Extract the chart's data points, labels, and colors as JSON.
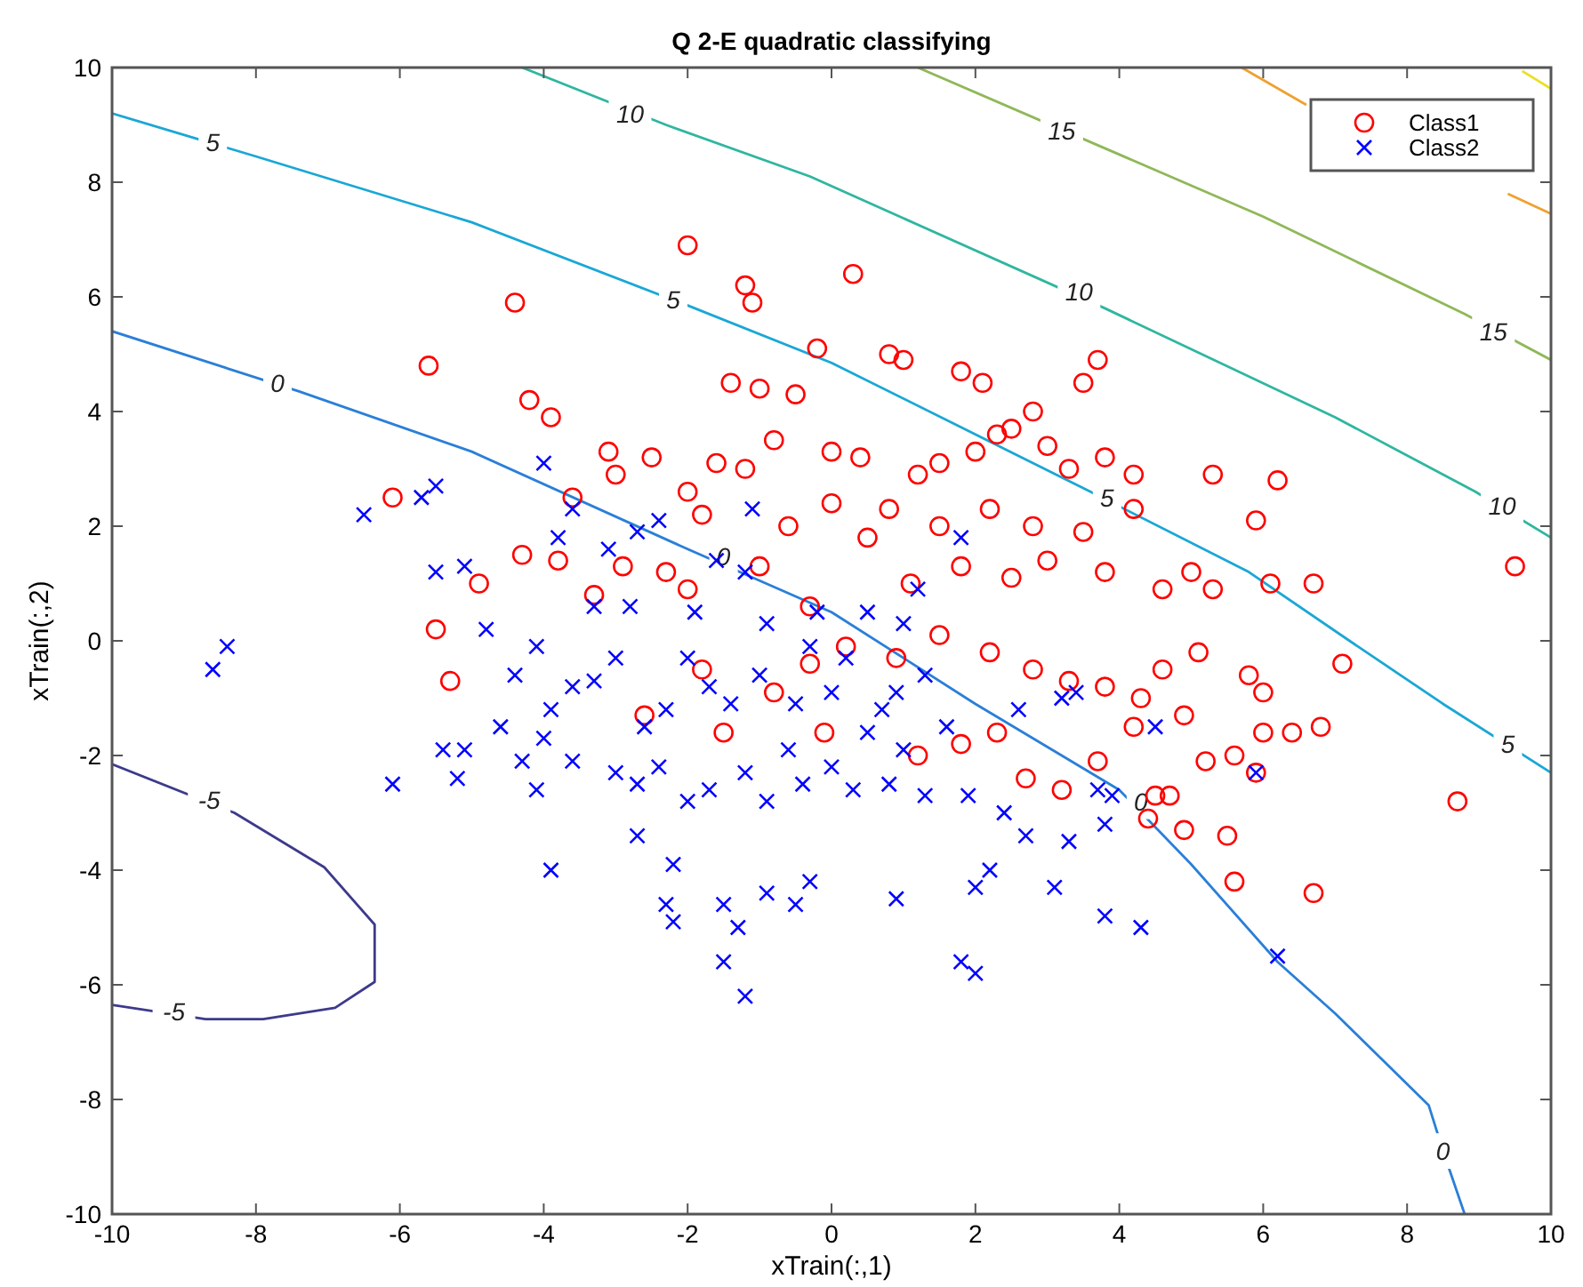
{
  "chart_data": {
    "type": "scatter",
    "title": "Q 2-E quadratic classifying",
    "xlabel": "xTrain(:,1)",
    "ylabel": "xTrain(:,2)",
    "xlim": [
      -10,
      10
    ],
    "ylim": [
      -10,
      10
    ],
    "xticks": [
      -10,
      -8,
      -6,
      -4,
      -2,
      0,
      2,
      4,
      6,
      8,
      10
    ],
    "yticks": [
      -10,
      -8,
      -6,
      -4,
      -2,
      0,
      2,
      4,
      6,
      8,
      10
    ],
    "grid": false,
    "legend": "top right",
    "series": [
      {
        "type": "line",
        "color": "#3d3a8c",
        "marker": "none",
        "x": [
          -10,
          -8.3,
          -7.05,
          -6.35,
          -6.35,
          -6.9,
          -7.9,
          -8.7,
          -10
        ],
        "values": [
          -2.15,
          -3.0,
          -3.95,
          -4.95,
          -5.95,
          -6.4,
          -6.6,
          -6.6,
          -6.35
        ]
      },
      {
        "type": "line",
        "color": "#2a7fd8",
        "marker": "none",
        "x": [
          -10,
          -7.4,
          -5,
          -2,
          0,
          2,
          4,
          5,
          6.2,
          7,
          8.3,
          8.5,
          8.8
        ],
        "values": [
          5.4,
          4.35,
          3.3,
          1.6,
          0.5,
          -1.1,
          -2.6,
          -3.9,
          -5.6,
          -6.5,
          -8.1,
          -8.9,
          -10
        ]
      },
      {
        "type": "line",
        "color": "#1aa7d6",
        "marker": "none",
        "x": [
          -10,
          -8,
          -5,
          -2,
          0,
          2,
          3.6,
          5.8,
          7.2,
          8.5,
          10
        ],
        "values": [
          9.2,
          8.45,
          7.3,
          5.85,
          4.85,
          3.6,
          2.6,
          1.2,
          0,
          -1.1,
          -2.3
        ]
      },
      {
        "type": "line",
        "color": "#2fb6a0",
        "marker": "none",
        "x": [
          -4.3,
          -2.3,
          -0.3,
          3.8,
          7,
          8.95,
          10
        ],
        "values": [
          10,
          9.0,
          8.1,
          5.8,
          3.9,
          2.6,
          1.8
        ]
      },
      {
        "type": "line",
        "color": "#8fb858",
        "marker": "none",
        "x": [
          1.2,
          3.6,
          6,
          8.8,
          10
        ],
        "values": [
          10,
          8.7,
          7.4,
          5.7,
          4.9
        ]
      },
      {
        "type": "line",
        "color": "#f0a030",
        "marker": "none",
        "x": [
          5.7,
          6.6,
          8,
          9.4,
          10
        ],
        "values": [
          10,
          9.35,
          null,
          7.8,
          7.45
        ]
      },
      {
        "type": "line",
        "color": "#e8e020",
        "marker": "none",
        "x": [
          9.6,
          10
        ],
        "values": [
          9.94,
          9.63
        ]
      },
      {
        "name": "Class1",
        "color": "#ff0000",
        "marker": "circle",
        "x": [
          -6.1,
          -5.5,
          -5.6,
          -4.4,
          -4.2,
          -3.9,
          -3.1,
          -3,
          -2.5,
          -2,
          -1.2,
          -1.1,
          -0.2,
          0.3,
          0.8,
          1.0,
          1.8,
          2.1,
          3.7,
          3.5,
          2.8,
          2.5,
          -1.4,
          -1,
          -0.5,
          -4.3,
          -4.9,
          -5.3,
          -2.3,
          -2.9,
          -2,
          -1.8,
          -2,
          -3.6,
          -3.8,
          -3.3,
          -1.6,
          -1.2,
          -0.8,
          0,
          0.4,
          1.2,
          1.5,
          2,
          2.3,
          3,
          3.3,
          3.8,
          4.2,
          5.3,
          6.2,
          5.9,
          4.2,
          3.5,
          2.8,
          2.2,
          1.5,
          0.8,
          0.5,
          0,
          -0.6,
          -1,
          -0.3,
          0.2,
          1.1,
          1.8,
          2.5,
          3,
          3.8,
          4.6,
          5.0,
          5.3,
          6.1,
          6.7,
          7.1,
          9.5,
          4.6,
          5.1,
          5.8,
          6.0,
          4.9,
          4.3,
          3.8,
          3.3,
          2.8,
          2.2,
          1.5,
          0.9,
          -0.3,
          -0.8,
          -1.5,
          -1.8,
          -2.6,
          -0.1,
          1.2,
          1.8,
          2.3,
          2.7,
          3.2,
          3.7,
          4.2,
          5.2,
          5.6,
          6.0,
          6.4,
          6.8,
          5.9,
          4.7,
          4.9,
          5.5,
          4.4,
          5.6,
          6.7,
          8.7,
          4.5
        ],
        "values": [
          2.5,
          0.2,
          4.8,
          5.9,
          4.2,
          3.9,
          3.3,
          2.9,
          3.2,
          6.9,
          6.2,
          5.9,
          5.1,
          6.4,
          5.0,
          4.9,
          4.7,
          4.5,
          4.9,
          4.5,
          4.0,
          3.7,
          4.5,
          4.4,
          4.3,
          1.5,
          1.0,
          -0.7,
          1.2,
          1.3,
          2.6,
          2.2,
          0.9,
          2.5,
          1.4,
          0.8,
          3.1,
          3.0,
          3.5,
          3.3,
          3.2,
          2.9,
          3.1,
          3.3,
          3.6,
          3.4,
          3.0,
          3.2,
          2.9,
          2.9,
          2.8,
          2.1,
          2.3,
          1.9,
          2.0,
          2.3,
          2.0,
          2.3,
          1.8,
          2.4,
          2.0,
          1.3,
          0.6,
          -0.1,
          1.0,
          1.3,
          1.1,
          1.4,
          1.2,
          0.9,
          1.2,
          0.9,
          1.0,
          1.0,
          -0.4,
          1.3,
          -0.5,
          -0.2,
          -0.6,
          -0.9,
          -1.3,
          -1.0,
          -0.8,
          -0.7,
          -0.5,
          -0.2,
          0.1,
          -0.3,
          -0.4,
          -0.9,
          -1.6,
          -0.5,
          -1.3,
          -1.6,
          -2,
          -1.8,
          -1.6,
          -2.4,
          -2.6,
          -2.1,
          -1.5,
          -2.1,
          -2.0,
          -1.6,
          -1.6,
          -1.5,
          -2.3,
          -2.7,
          -3.3,
          -3.4,
          -3.1,
          -4.2,
          -4.4,
          -2.8,
          -2.7
        ]
      },
      {
        "name": "Class2",
        "color": "#0000ff",
        "marker": "cross",
        "x": [
          -8.6,
          -8.4,
          -6.1,
          -6.5,
          -5.7,
          -5.5,
          -5.1,
          -5.5,
          -4.8,
          -4.4,
          -4.1,
          -3.8,
          -3.6,
          -4.0,
          -3.3,
          -5.4,
          -5.1,
          -5.2,
          -4.6,
          -4.3,
          -4.0,
          -3.9,
          -3.6,
          -3.3,
          -3.0,
          -2.8,
          -2.6,
          -2.3,
          -2.0,
          -1.7,
          -1.4,
          -1,
          -0.5,
          0,
          0.2,
          0.5,
          0.9,
          1.3,
          -3.0,
          -2.7,
          -2.4,
          -2.0,
          -1.7,
          -1.2,
          -0.9,
          -0.4,
          0,
          0.3,
          0.8,
          1.3,
          1.9,
          2.4,
          2.7,
          3.3,
          3.8,
          3.9,
          2.2,
          2.0,
          3.1,
          3.8,
          4.3,
          1.8,
          2.0,
          0.9,
          -0.9,
          -0.5,
          -1.5,
          -1.3,
          -1.5,
          -1.2,
          -2.7,
          -3.9,
          -2.3,
          -2.2,
          -0.3,
          6.2,
          5.9,
          3.2,
          1.2,
          1.8,
          -2.4,
          -1.1,
          -1.6,
          -1.2,
          -0.2,
          -0.9,
          0.5,
          1.0,
          2.6,
          3.4,
          4.5,
          3.7,
          1.6,
          1.0,
          -0.6,
          -2.2,
          -3.6,
          -4.1,
          -1.9,
          -2.7,
          -3.1,
          -0.3,
          0.7
        ],
        "values": [
          -0.5,
          -0.1,
          -2.5,
          2.2,
          2.5,
          2.7,
          1.3,
          1.2,
          0.2,
          -0.6,
          -0.1,
          1.8,
          2.3,
          3.1,
          0.6,
          -1.9,
          -1.9,
          -2.4,
          -1.5,
          -2.1,
          -1.7,
          -1.2,
          -0.8,
          -0.7,
          -0.3,
          0.6,
          -1.5,
          -1.2,
          -0.3,
          -0.8,
          -1.1,
          -0.6,
          -1.1,
          -0.9,
          -0.3,
          -1.6,
          -0.9,
          -0.6,
          -2.3,
          -2.5,
          -2.2,
          -2.8,
          -2.6,
          -2.3,
          -2.8,
          -2.5,
          -2.2,
          -2.6,
          -2.5,
          -2.7,
          -2.7,
          -3.0,
          -3.4,
          -3.5,
          -3.2,
          -2.7,
          -4.0,
          -4.3,
          -4.3,
          -4.8,
          -5.0,
          -5.6,
          -5.8,
          -4.5,
          -4.4,
          -4.6,
          -4.6,
          -5.0,
          -5.6,
          -6.2,
          -3.4,
          -4,
          -4.6,
          -4.9,
          -4.2,
          -5.5,
          -2.3,
          -1.0,
          0.9,
          1.8,
          2.1,
          2.3,
          1.4,
          1.2,
          0.5,
          0.3,
          0.5,
          0.3,
          -1.2,
          -0.9,
          -1.5,
          -2.6,
          -1.5,
          -1.9,
          -1.9,
          -3.9,
          -2.1,
          -2.6,
          0.5,
          1.9,
          1.6,
          -0.1,
          -1.2
        ]
      }
    ],
    "annotations": [
      {
        "text": "5",
        "x": -8.6,
        "y": 8.7
      },
      {
        "text": "0",
        "x": -7.7,
        "y": 4.5
      },
      {
        "text": "10",
        "x": -2.8,
        "y": 9.2
      },
      {
        "text": "5",
        "x": -2.2,
        "y": 5.95
      },
      {
        "text": "15",
        "x": 3.2,
        "y": 8.9
      },
      {
        "text": "10",
        "x": 3.44,
        "y": 6.1
      },
      {
        "text": "15",
        "x": 9.2,
        "y": 5.4
      },
      {
        "text": "5",
        "x": 3.83,
        "y": 2.5
      },
      {
        "text": "10",
        "x": 9.32,
        "y": 2.35
      },
      {
        "text": "0",
        "x": -1.5,
        "y": 1.47
      },
      {
        "text": "0",
        "x": 4.3,
        "y": -2.8
      },
      {
        "text": "5",
        "x": 9.4,
        "y": -1.8
      },
      {
        "text": "0",
        "x": 8.5,
        "y": -8.9
      },
      {
        "text": "-5",
        "x": -8.65,
        "y": -2.77
      },
      {
        "text": "-5",
        "x": -9.14,
        "y": -6.47
      }
    ]
  }
}
